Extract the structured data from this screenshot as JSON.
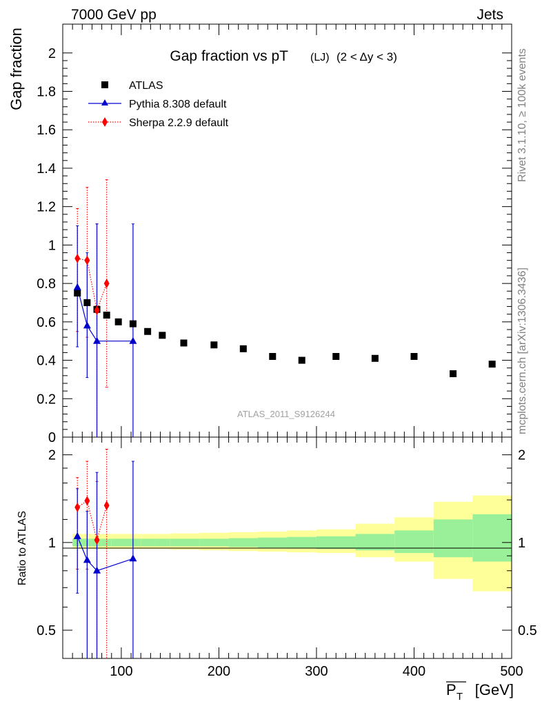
{
  "header": {
    "left": "7000 GeV pp",
    "right": "Jets"
  },
  "side_text": {
    "top": "Rivet 3.1.10, ≥ 100k events",
    "bottom": "mcplots.cern.ch [arXiv:1306.3436]"
  },
  "watermark": "ATLAS_2011_S9126244",
  "chart_data": [
    {
      "type": "scatter",
      "panel": "main",
      "title": "Gap fraction vs pT",
      "title_sub": "(LJ)",
      "title_extra": "(2 < Δy < 3)",
      "ylabel": "Gap fraction",
      "xlim": [
        40,
        500
      ],
      "ylim": [
        0,
        2.15
      ],
      "yticks": [
        0,
        0.2,
        0.4,
        0.6,
        0.8,
        1,
        1.2,
        1.4,
        1.6,
        1.8,
        2
      ],
      "ytick_labels": [
        "0",
        "0.2",
        "0.4",
        "0.6",
        "0.8",
        "1",
        "1.2",
        "1.4",
        "1.6",
        "1.8",
        "2"
      ],
      "legend": {
        "position": "top-left",
        "entries": [
          "ATLAS",
          "Pythia 8.308 default",
          "Sherpa 2.2.9 default"
        ]
      },
      "series": [
        {
          "name": "ATLAS",
          "color": "#000000",
          "marker": "square",
          "x": [
            55,
            65,
            75,
            85,
            97,
            112,
            127,
            142,
            164,
            195,
            225,
            255,
            285,
            320,
            360,
            400,
            440,
            480
          ],
          "y": [
            0.75,
            0.7,
            0.665,
            0.635,
            0.6,
            0.59,
            0.55,
            0.53,
            0.49,
            0.48,
            0.46,
            0.42,
            0.4,
            0.42,
            0.41,
            0.42,
            0.33,
            0.38
          ]
        },
        {
          "name": "Pythia 8.308 default",
          "color": "#0000cc",
          "marker": "triangle",
          "line": "solid",
          "x": [
            55,
            65,
            75,
            112
          ],
          "y": [
            0.78,
            0.58,
            0.5,
            0.5
          ],
          "err_low": [
            0.31,
            0.27,
            0.5,
            0.5
          ],
          "err_high": [
            0.32,
            0.38,
            0.61,
            0.61
          ],
          "line_end_x": 112
        },
        {
          "name": "Sherpa 2.2.9 default",
          "color": "#ff0000",
          "marker": "diamond",
          "line": "dotted",
          "x": [
            55,
            65,
            75,
            85
          ],
          "y": [
            0.93,
            0.92,
            0.66,
            0.8
          ],
          "err_low": [
            0.38,
            0.4,
            0.66,
            0.54
          ],
          "err_high": [
            0.26,
            0.38,
            0.45,
            0.54
          ]
        }
      ]
    },
    {
      "type": "scatter",
      "panel": "ratio",
      "ylabel": "Ratio to ATLAS",
      "xlabel": "P_T [GeV]",
      "xlabel_main": "P",
      "xlabel_sub": "T",
      "xlabel_unit": "[GeV]",
      "xlim": [
        40,
        500
      ],
      "ylim": [
        0.4,
        2.3
      ],
      "log_y": true,
      "xticks": [
        100,
        200,
        300,
        400,
        500
      ],
      "xtick_labels": [
        "100",
        "200",
        "300",
        "400",
        "500"
      ],
      "yticks": [
        0.5,
        1,
        2
      ],
      "ytick_labels": [
        "0.5",
        "1",
        "2"
      ],
      "bands": {
        "edges": [
          50,
          60,
          70,
          80,
          90,
          105,
          120,
          135,
          150,
          180,
          210,
          240,
          270,
          300,
          340,
          380,
          420,
          460,
          500
        ],
        "inner_low": [
          0.97,
          0.97,
          0.97,
          0.97,
          0.97,
          0.97,
          0.97,
          0.97,
          0.97,
          0.97,
          0.965,
          0.96,
          0.955,
          0.95,
          0.94,
          0.92,
          0.89,
          0.86
        ],
        "inner_high": [
          1.03,
          1.03,
          1.03,
          1.03,
          1.03,
          1.03,
          1.03,
          1.03,
          1.03,
          1.03,
          1.035,
          1.04,
          1.045,
          1.05,
          1.07,
          1.1,
          1.2,
          1.25
        ],
        "outer_low": [
          0.95,
          0.95,
          0.95,
          0.95,
          0.95,
          0.95,
          0.95,
          0.95,
          0.945,
          0.94,
          0.935,
          0.93,
          0.925,
          0.92,
          0.89,
          0.86,
          0.75,
          0.68
        ],
        "outer_high": [
          1.07,
          1.07,
          1.07,
          1.07,
          1.07,
          1.07,
          1.07,
          1.07,
          1.075,
          1.08,
          1.085,
          1.09,
          1.1,
          1.11,
          1.16,
          1.22,
          1.38,
          1.45
        ],
        "inner_color": "#99f099",
        "outer_color": "#ffff99"
      },
      "series": [
        {
          "name": "Pythia 8.308 default",
          "color": "#0000cc",
          "marker": "triangle",
          "line": "solid",
          "x": [
            55,
            65,
            75,
            112
          ],
          "y": [
            1.05,
            0.87,
            0.8,
            0.88
          ],
          "err_low": [
            0.38,
            0.49,
            0.4,
            0.48
          ],
          "err_high": [
            0.48,
            0.41,
            0.94,
            1.02
          ]
        },
        {
          "name": "Sherpa 2.2.9 default",
          "color": "#ff0000",
          "marker": "diamond",
          "line": "dotted",
          "x": [
            55,
            65,
            75,
            85
          ],
          "y": [
            1.32,
            1.39,
            1.02,
            1.34
          ],
          "err_low": [
            0.51,
            0.58,
            0.62,
            0.96
          ],
          "err_high": [
            0.35,
            0.51,
            0.6,
            0.75
          ]
        }
      ]
    }
  ]
}
